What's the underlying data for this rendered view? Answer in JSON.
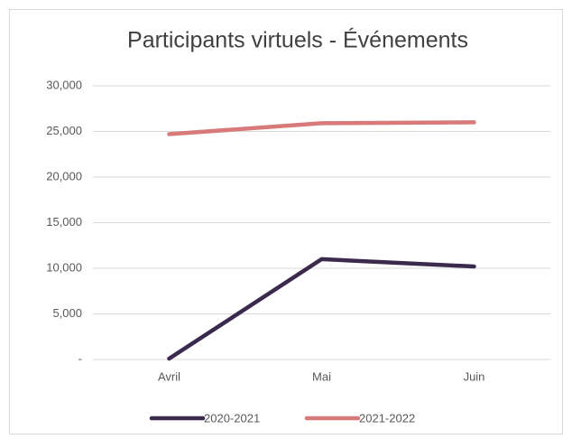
{
  "chart_data": {
    "type": "line",
    "title": "Participants virtuels - Événements",
    "categories": [
      "Avril",
      "Mai",
      "Juin"
    ],
    "series": [
      {
        "name": "2020-2021",
        "color": "#3b2a4e",
        "values": [
          100,
          11000,
          10200
        ]
      },
      {
        "name": "2021-2022",
        "color": "#d87a7a",
        "values": [
          24700,
          25900,
          26000
        ]
      }
    ],
    "ylim": [
      0,
      30000
    ],
    "yticks": [
      {
        "value": 0,
        "label": "-"
      },
      {
        "value": 5000,
        "label": "5,000"
      },
      {
        "value": 10000,
        "label": "10,000"
      },
      {
        "value": 15000,
        "label": "15,000"
      },
      {
        "value": 20000,
        "label": "20,000"
      },
      {
        "value": 25000,
        "label": "25,000"
      },
      {
        "value": 30000,
        "label": "30,000"
      }
    ],
    "grid": true,
    "legend": "bottom"
  }
}
